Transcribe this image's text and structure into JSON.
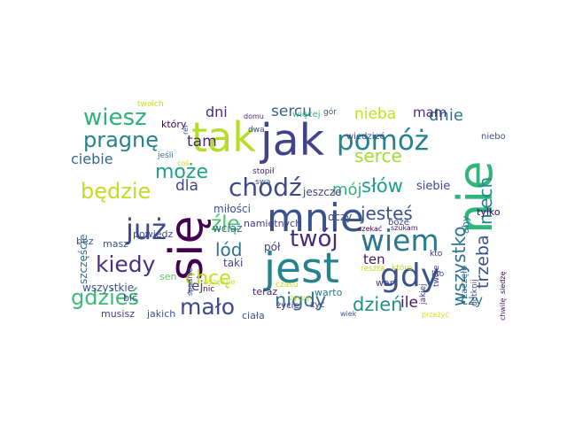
{
  "words": [
    {
      "text": "nie",
      "color": "#31b57b"
    },
    {
      "text": "się",
      "color": "#440154"
    },
    {
      "text": "jest",
      "color": "#25838e"
    },
    {
      "text": "jak",
      "color": "#414487"
    },
    {
      "text": "tak",
      "color": "#b5de2b"
    },
    {
      "text": "mnie",
      "color": "#3b528b"
    },
    {
      "text": "pomóż",
      "color": "#26828e"
    },
    {
      "text": "już",
      "color": "#3e4989"
    },
    {
      "text": "wiem",
      "color": "#2a788e"
    },
    {
      "text": "gdy",
      "color": "#3b528b"
    },
    {
      "text": "chodź",
      "color": "#3e4a89"
    },
    {
      "text": "twój",
      "color": "#472c7a"
    },
    {
      "text": "kiedy",
      "color": "#46327e"
    },
    {
      "text": "wiesz",
      "color": "#2db27d"
    },
    {
      "text": "pragnę",
      "color": "#26828e"
    },
    {
      "text": "może",
      "color": "#1fa088"
    },
    {
      "text": "będzie",
      "color": "#bddf26"
    },
    {
      "text": "gdzieś",
      "color": "#3fbc73"
    },
    {
      "text": "mało",
      "color": "#3e4a89"
    },
    {
      "text": "nigdy",
      "color": "#2c728e"
    },
    {
      "text": "dzień",
      "color": "#20928c"
    },
    {
      "text": "jesteś",
      "color": "#3b528b"
    },
    {
      "text": "słów",
      "color": "#1f9e89"
    },
    {
      "text": "serce",
      "color": "#a2da37"
    },
    {
      "text": "mój",
      "color": "#30b47c"
    },
    {
      "text": "chcę",
      "color": "#c2df23"
    },
    {
      "text": "źle",
      "color": "#4ac16d"
    },
    {
      "text": "lód",
      "color": "#2c728e"
    },
    {
      "text": "trzeba",
      "color": "#3b528b"
    },
    {
      "text": "wszystko",
      "color": "#2c728e"
    },
    {
      "text": "niech",
      "color": "#24878e"
    },
    {
      "text": "nieba",
      "color": "#c2df23"
    },
    {
      "text": "dnie",
      "color": "#2a788e"
    },
    {
      "text": "sercu",
      "color": "#33638d"
    },
    {
      "text": "mam",
      "color": "#472d7b"
    },
    {
      "text": "dni",
      "color": "#462f7e"
    },
    {
      "text": "tam",
      "color": "#482878"
    },
    {
      "text": "dla",
      "color": "#3e4989"
    },
    {
      "text": "ciebie",
      "color": "#31688e"
    },
    {
      "text": "jej",
      "color": "#3e4989"
    },
    {
      "text": "ten",
      "color": "#481668"
    },
    {
      "text": "ile",
      "color": "#471365"
    },
    {
      "text": "czy",
      "color": "#2a788e"
    },
    {
      "text": "siebie",
      "color": "#3e4a89"
    },
    {
      "text": "miłości",
      "color": "#3b528b"
    },
    {
      "text": "jeszcze",
      "color": "#414487"
    },
    {
      "text": "oczy",
      "color": "#3b528b"
    },
    {
      "text": "wciąż",
      "color": "#31688e"
    },
    {
      "text": "namiętnych",
      "color": "#433e85"
    },
    {
      "text": "pół",
      "color": "#443a83"
    },
    {
      "text": "taki",
      "color": "#3e4989"
    },
    {
      "text": "wszystkie",
      "color": "#3b528b"
    },
    {
      "text": "szczęście",
      "color": "#2c728e"
    },
    {
      "text": "sen",
      "color": "#5ec962"
    },
    {
      "text": "bez",
      "color": "#38588c"
    },
    {
      "text": "masz",
      "color": "#3b528b"
    },
    {
      "text": "powiedz",
      "color": "#3e4989"
    },
    {
      "text": "bić",
      "color": "#414487"
    },
    {
      "text": "musisz",
      "color": "#424186"
    },
    {
      "text": "jakich",
      "color": "#3b528b"
    },
    {
      "text": "ciała",
      "color": "#3b528b"
    },
    {
      "text": "nic",
      "color": "#440154"
    },
    {
      "text": "teraz",
      "color": "#482475"
    },
    {
      "text": "warto",
      "color": "#2a788e"
    },
    {
      "text": "czasu",
      "color": "#c8e020"
    },
    {
      "text": "życie",
      "color": "#482173"
    },
    {
      "text": "żyć",
      "color": "#443983"
    },
    {
      "text": "wiek",
      "color": "#3b528b"
    },
    {
      "text": "wart",
      "color": "#3e4a89"
    },
    {
      "text": "czekać",
      "color": "#440154"
    },
    {
      "text": "szukam",
      "color": "#481a6c"
    },
    {
      "text": "boże",
      "color": "#3e4989"
    },
    {
      "text": "aby",
      "color": "#2a788e"
    },
    {
      "text": "tylko",
      "color": "#440154"
    },
    {
      "text": "zaczęło",
      "color": "#31688e"
    },
    {
      "text": "twoje",
      "color": "#46307e"
    },
    {
      "text": "dotknij",
      "color": "#3e4a89"
    },
    {
      "text": "jakiej",
      "color": "#3e4989"
    },
    {
      "text": "przeżyć",
      "color": "#d8e219"
    },
    {
      "text": "chwilę",
      "color": "#482475"
    },
    {
      "text": "siedzę",
      "color": "#440154"
    },
    {
      "text": "niebo",
      "color": "#3b528b"
    },
    {
      "text": "kto",
      "color": "#463480"
    },
    {
      "text": "które",
      "color": "#b8de29"
    },
    {
      "text": "reszta",
      "color": "#c2df23"
    },
    {
      "text": "wiedzieć",
      "color": "#3e4989"
    },
    {
      "text": "gór",
      "color": "#3b528b"
    },
    {
      "text": "więcej",
      "color": "#32b67a"
    },
    {
      "text": "dwa",
      "color": "#3b528b"
    },
    {
      "text": "domu",
      "color": "#482878"
    },
    {
      "text": "stopił",
      "color": "#481f70"
    },
    {
      "text": "swą",
      "color": "#3b528b"
    },
    {
      "text": "jeśli",
      "color": "#2a788e"
    },
    {
      "text": "który",
      "color": "#440154"
    },
    {
      "text": "twoich",
      "color": "#c2df23"
    },
    {
      "text": "coś",
      "color": "#d0e11c"
    },
    {
      "text": "ref",
      "color": "#3b528b"
    },
    {
      "text": "spadnie",
      "color": "#3e4a89"
    },
    {
      "text": "wszędzie",
      "color": "#c2df23"
    },
    {
      "text": "życzę",
      "color": "#c2df23"
    },
    {
      "text": "kto",
      "color": "#3b528b"
    }
  ]
}
